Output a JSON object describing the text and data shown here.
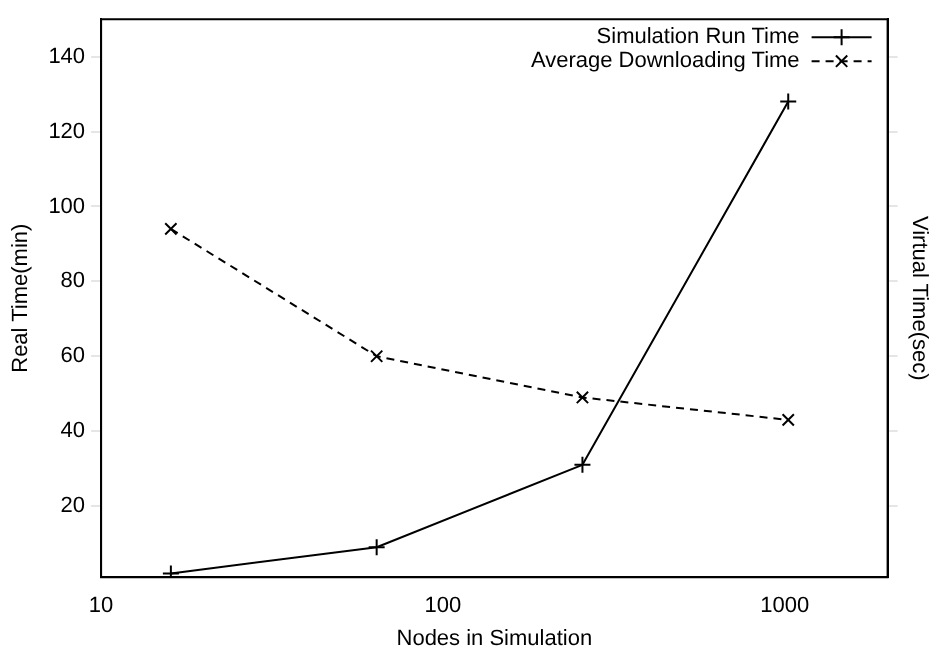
{
  "chart_data": {
    "type": "line",
    "xlabel": "Nodes in Simulation",
    "ylabel": "Real Time(min)",
    "y2label": "Virtual Time(sec)",
    "x": [
      16,
      64,
      256,
      1024
    ],
    "log": "x",
    "xlim": [
      10,
      2000
    ],
    "xticks": [
      10,
      100,
      1000
    ],
    "ylim": [
      1,
      150
    ],
    "yticks": [
      20,
      40,
      60,
      80,
      100,
      120,
      140
    ],
    "grid": false,
    "legend": "top right",
    "series": [
      {
        "name": "Simulation Run Time",
        "color": "#000000",
        "values": [
          2,
          9,
          31,
          128
        ],
        "marker": "cross",
        "line_style": "solid"
      },
      {
        "name": "Average Downloading Time",
        "color": "#000000",
        "values": [
          94,
          60,
          49,
          43
        ],
        "marker": "cross",
        "line_style": "dashed"
      }
    ]
  }
}
